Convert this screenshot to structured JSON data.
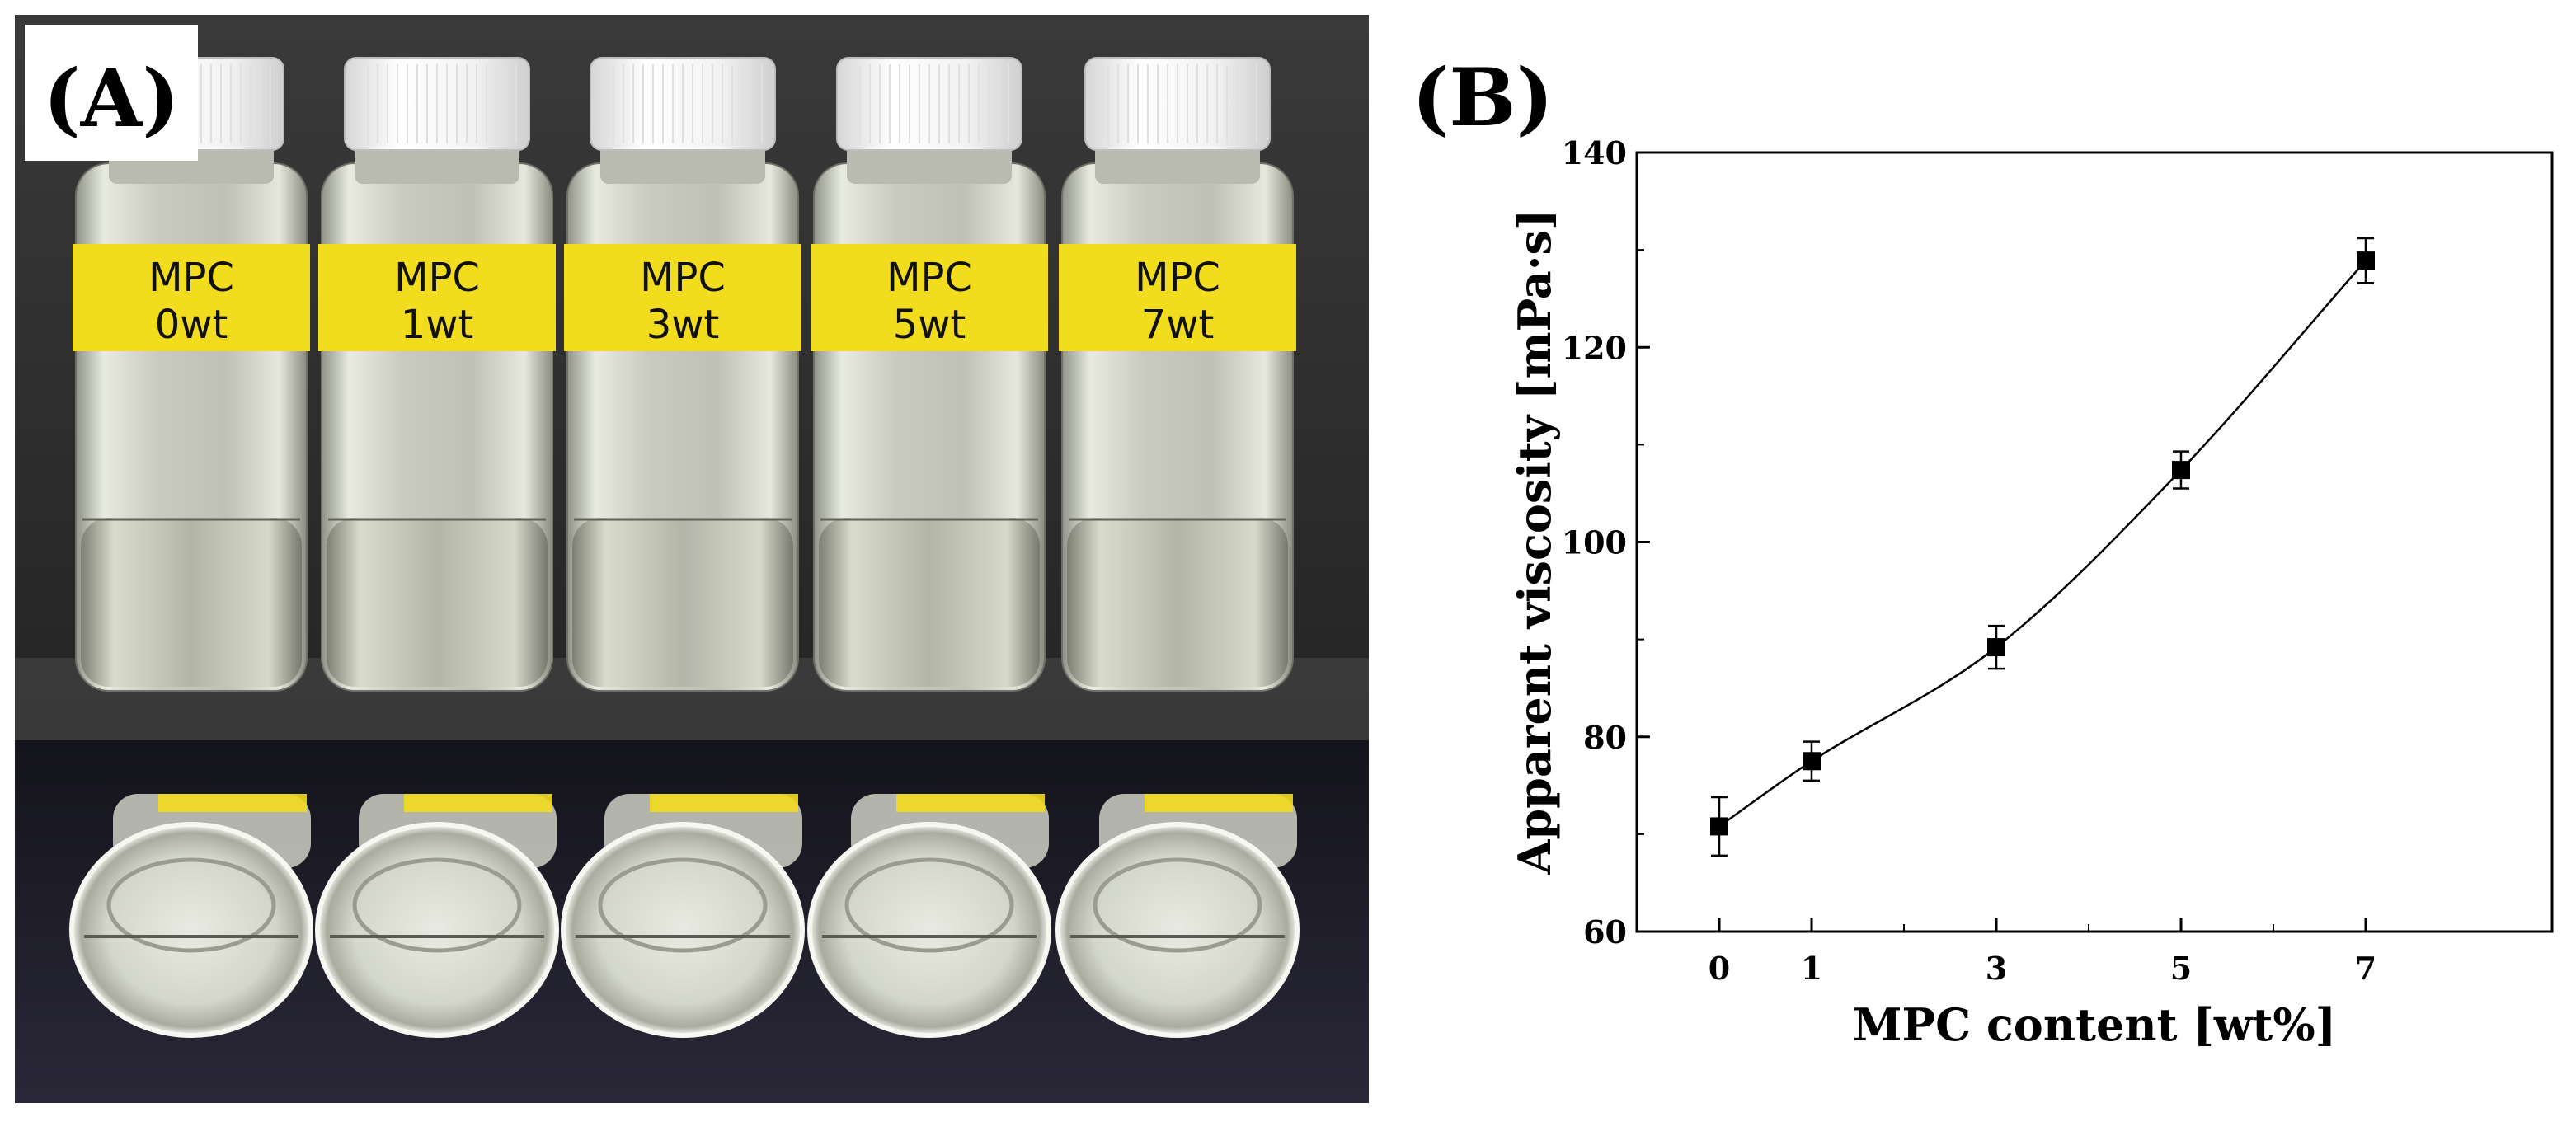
{
  "panels": {
    "a": {
      "label": "(A)"
    },
    "b": {
      "label": "(B)"
    }
  },
  "photo": {
    "vials": [
      {
        "line1": "MPC",
        "line2": "0wt"
      },
      {
        "line1": "MPC",
        "line2": "1wt"
      },
      {
        "line1": "MPC",
        "line2": "3wt"
      },
      {
        "line1": "MPC",
        "line2": "5wt"
      },
      {
        "line1": "MPC",
        "line2": "7wt"
      }
    ],
    "colors": {
      "backdrop": "#2a2a2a",
      "label_yellow": "#f2dc1e",
      "cap_white": "#f4f4f4",
      "table_surface": "#1e1c2c"
    }
  },
  "chart_data": {
    "type": "line",
    "x": [
      0,
      1,
      3,
      5,
      7
    ],
    "categories": [
      "0",
      "1",
      "3",
      "5",
      "7"
    ],
    "series": [
      {
        "values": [
          70.8,
          77.5,
          89.2,
          107.4,
          128.9
        ],
        "errors": [
          3.0,
          2.0,
          2.2,
          1.9,
          2.3
        ],
        "marker": "square",
        "color": "#000000"
      }
    ],
    "xlabel": "MPC content [wt%]",
    "ylabel": "Apparent viscosity [mPa·s]",
    "ylim": [
      60,
      140
    ],
    "yticks": [
      "60",
      "80",
      "100",
      "120",
      "140"
    ],
    "grid": false
  }
}
